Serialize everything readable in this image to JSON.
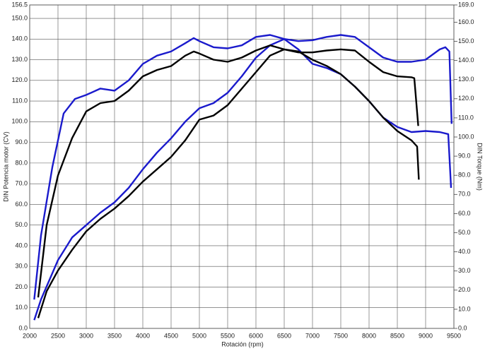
{
  "chart_data": {
    "type": "line",
    "xlabel": "Rotación (rpm)",
    "ylabel": "DIN Potencia motor (CV)",
    "y2label": "DIN Torque (Nm)",
    "xlim": [
      2000,
      9500
    ],
    "xticks": [
      2000,
      2500,
      3000,
      3500,
      4000,
      4500,
      5000,
      5500,
      6000,
      6500,
      7000,
      7500,
      8000,
      8500,
      9000,
      9500
    ],
    "ylim": [
      0,
      156.5
    ],
    "yticks": [
      {
        "value": 0,
        "label": "0.0"
      },
      {
        "value": 10,
        "label": "10.0"
      },
      {
        "value": 20,
        "label": "20.0"
      },
      {
        "value": 30,
        "label": "30.0"
      },
      {
        "value": 40,
        "label": "40.0"
      },
      {
        "value": 50,
        "label": "50.0"
      },
      {
        "value": 60,
        "label": "60.0"
      },
      {
        "value": 70,
        "label": "70.0"
      },
      {
        "value": 80,
        "label": "80.0"
      },
      {
        "value": 90,
        "label": "90.0"
      },
      {
        "value": 100,
        "label": "100.0"
      },
      {
        "value": 110,
        "label": "110.0"
      },
      {
        "value": 120,
        "label": "120.0"
      },
      {
        "value": 130,
        "label": "130.0"
      },
      {
        "value": 140,
        "label": "140.0"
      },
      {
        "value": 150,
        "label": "150.0"
      },
      156.5
    ],
    "y2lim": [
      0,
      169
    ],
    "y2ticks": [
      {
        "value": 0,
        "label": "0.0"
      },
      {
        "value": 10,
        "label": "10.0"
      },
      {
        "value": 20,
        "label": "20.0"
      },
      {
        "value": 30,
        "label": "30.0"
      },
      {
        "value": 40,
        "label": "40.0"
      },
      {
        "value": 50,
        "label": "50.0"
      },
      {
        "value": 60,
        "label": "60.0"
      },
      {
        "value": 70,
        "label": "70.0"
      },
      {
        "value": 80,
        "label": "80.0"
      },
      {
        "value": 90,
        "label": "90.0"
      },
      {
        "value": 100,
        "label": "100.0"
      },
      {
        "value": 110,
        "label": "110.0"
      },
      {
        "value": 120,
        "label": "120.0"
      },
      {
        "value": 130,
        "label": "130.0"
      },
      {
        "value": 140,
        "label": "140.0"
      },
      {
        "value": 150,
        "label": "150.0"
      },
      {
        "value": 160,
        "label": "160.0"
      },
      {
        "value": 169,
        "label": "169.0"
      }
    ],
    "grid": true,
    "series": [
      {
        "color": "#1a1acc",
        "x": [
          2080,
          2200,
          2500,
          2750,
          3000,
          3250,
          3500,
          3750,
          4000,
          4250,
          4500,
          4750,
          5000,
          5250,
          5500,
          5750,
          6000,
          6250,
          6500,
          6750,
          7000,
          7250,
          7500,
          7750,
          8000,
          8250,
          8500,
          8750,
          9000,
          9250,
          9400,
          9450
        ],
        "values": [
          4,
          14,
          33,
          44,
          50,
          56,
          61,
          68,
          77,
          85,
          92,
          100,
          106.5,
          109,
          114,
          122,
          131,
          137,
          140,
          135,
          128,
          126,
          123,
          117,
          110,
          102,
          97.5,
          95,
          95.5,
          95,
          94,
          68
        ]
      },
      {
        "color": "#000000",
        "x": [
          2150,
          2300,
          2500,
          2750,
          3000,
          3250,
          3500,
          3750,
          4000,
          4250,
          4500,
          4750,
          5000,
          5250,
          5500,
          5750,
          6000,
          6250,
          6500,
          6750,
          7000,
          7250,
          7500,
          7750,
          8000,
          8250,
          8500,
          8750,
          8850,
          8880
        ],
        "values": [
          5,
          18,
          28,
          38,
          47,
          53,
          58,
          64,
          71,
          77,
          83,
          91,
          101,
          103,
          108,
          116,
          124,
          132,
          135,
          134,
          130,
          127,
          123,
          117,
          110,
          102,
          95.5,
          91,
          88,
          72
        ]
      },
      {
        "color": "#1a1acc",
        "axis": "y2",
        "x": [
          2080,
          2200,
          2400,
          2600,
          2800,
          3000,
          3250,
          3500,
          3750,
          4000,
          4250,
          4500,
          4750,
          4900,
          5000,
          5250,
          5500,
          5750,
          6000,
          6250,
          6500,
          6750,
          7000,
          7250,
          7500,
          7750,
          8000,
          8250,
          8500,
          8750,
          9000,
          9250,
          9350,
          9420,
          9460
        ],
        "values": [
          15.1,
          48.6,
          84.2,
          112.3,
          119.9,
          122.0,
          125.3,
          124.2,
          129.6,
          138.2,
          142.5,
          144.7,
          149.0,
          151.7,
          150.1,
          146.9,
          146.3,
          147.9,
          152.3,
          153.3,
          151.2,
          150.1,
          150.6,
          152.3,
          153.3,
          152.3,
          146.9,
          141.5,
          139.3,
          139.3,
          140.4,
          145.8,
          146.9,
          144.7,
          106.9
        ]
      },
      {
        "color": "#000000",
        "axis": "y2",
        "x": [
          2150,
          2300,
          2500,
          2750,
          3000,
          3250,
          3500,
          3750,
          4000,
          4250,
          4500,
          4750,
          4900,
          5000,
          5250,
          5500,
          5750,
          6000,
          6250,
          6500,
          6750,
          7000,
          7250,
          7500,
          7750,
          8000,
          8250,
          8500,
          8750,
          8800,
          8870
        ],
        "values": [
          16.2,
          54.0,
          79.9,
          99.4,
          113.4,
          117.7,
          118.8,
          124.2,
          131.7,
          135.0,
          137.1,
          142.5,
          144.7,
          143.6,
          140.4,
          139.3,
          141.5,
          145.2,
          147.9,
          145.8,
          144.2,
          144.2,
          145.2,
          145.8,
          145.2,
          139.3,
          133.9,
          131.7,
          131.2,
          130.7,
          105.8
        ]
      }
    ]
  }
}
